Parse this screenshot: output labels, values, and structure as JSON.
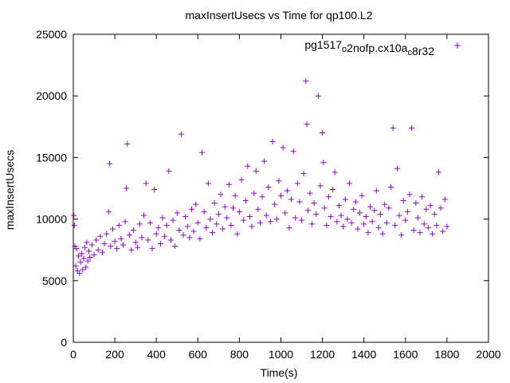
{
  "chart_data": {
    "type": "scatter",
    "title": "maxInsertUsecs vs Time for qp100.L2",
    "xlabel": "Time(s)",
    "ylabel": "maxInsertUsecs",
    "xlim": [
      0,
      2000
    ],
    "ylim": [
      0,
      25000
    ],
    "x_ticks": [
      0,
      200,
      400,
      600,
      800,
      1000,
      1200,
      1400,
      1600,
      1800,
      2000
    ],
    "y_ticks": [
      0,
      5000,
      10000,
      15000,
      20000,
      25000
    ],
    "grid": false,
    "legend_position": "top-right",
    "series": [
      {
        "name": "pg1517_o2nofp.cx10a_c8r32",
        "name_parts": [
          {
            "text": "pg1517",
            "sub": false
          },
          {
            "text": "o",
            "sub": true
          },
          {
            "text": "2nofp.cx10a",
            "sub": false
          },
          {
            "text": "c",
            "sub": true
          },
          {
            "text": "8r32",
            "sub": false
          }
        ],
        "color": "#9400d3",
        "marker": "plus",
        "points": [
          [
            2,
            10300
          ],
          [
            5,
            9500
          ],
          [
            8,
            7800
          ],
          [
            12,
            6200
          ],
          [
            15,
            7600
          ],
          [
            20,
            5800
          ],
          [
            25,
            7000
          ],
          [
            30,
            5600
          ],
          [
            35,
            6500
          ],
          [
            40,
            7200
          ],
          [
            45,
            5900
          ],
          [
            50,
            6800
          ],
          [
            55,
            7700
          ],
          [
            60,
            6100
          ],
          [
            65,
            8100
          ],
          [
            70,
            6600
          ],
          [
            75,
            7400
          ],
          [
            80,
            6900
          ],
          [
            90,
            7900
          ],
          [
            100,
            7100
          ],
          [
            110,
            8300
          ],
          [
            120,
            7500
          ],
          [
            130,
            8600
          ],
          [
            140,
            7300
          ],
          [
            150,
            8000
          ],
          [
            160,
            8800
          ],
          [
            170,
            10600
          ],
          [
            175,
            14500
          ],
          [
            180,
            7800
          ],
          [
            190,
            9200
          ],
          [
            200,
            8200
          ],
          [
            210,
            7600
          ],
          [
            220,
            9500
          ],
          [
            230,
            8400
          ],
          [
            240,
            7900
          ],
          [
            250,
            9800
          ],
          [
            255,
            12500
          ],
          [
            260,
            16100
          ],
          [
            270,
            8700
          ],
          [
            280,
            7500
          ],
          [
            290,
            9100
          ],
          [
            300,
            8100
          ],
          [
            310,
            7700
          ],
          [
            320,
            9600
          ],
          [
            330,
            8500
          ],
          [
            340,
            10300
          ],
          [
            350,
            12900
          ],
          [
            360,
            8300
          ],
          [
            370,
            9700
          ],
          [
            380,
            7600
          ],
          [
            390,
            12400
          ],
          [
            400,
            8800
          ],
          [
            410,
            9300
          ],
          [
            420,
            8000
          ],
          [
            430,
            10100
          ],
          [
            440,
            8600
          ],
          [
            450,
            9500
          ],
          [
            460,
            13900
          ],
          [
            470,
            8300
          ],
          [
            480,
            9900
          ],
          [
            490,
            7800
          ],
          [
            500,
            10500
          ],
          [
            510,
            9100
          ],
          [
            520,
            16900
          ],
          [
            530,
            8700
          ],
          [
            540,
            10200
          ],
          [
            550,
            9400
          ],
          [
            560,
            8500
          ],
          [
            570,
            10800
          ],
          [
            580,
            9000
          ],
          [
            590,
            11200
          ],
          [
            600,
            9700
          ],
          [
            610,
            8400
          ],
          [
            620,
            15400
          ],
          [
            630,
            10600
          ],
          [
            640,
            9300
          ],
          [
            650,
            12900
          ],
          [
            660,
            10000
          ],
          [
            670,
            8900
          ],
          [
            680,
            11300
          ],
          [
            690,
            9600
          ],
          [
            700,
            10400
          ],
          [
            710,
            12000
          ],
          [
            720,
            9200
          ],
          [
            730,
            11000
          ],
          [
            740,
            10100
          ],
          [
            750,
            12800
          ],
          [
            760,
            9500
          ],
          [
            770,
            10900
          ],
          [
            780,
            11900
          ],
          [
            790,
            8800
          ],
          [
            800,
            10600
          ],
          [
            810,
            13200
          ],
          [
            820,
            9900
          ],
          [
            830,
            11500
          ],
          [
            840,
            14300
          ],
          [
            850,
            10200
          ],
          [
            860,
            9400
          ],
          [
            870,
            12100
          ],
          [
            880,
            13900
          ],
          [
            890,
            10800
          ],
          [
            900,
            9700
          ],
          [
            910,
            11800
          ],
          [
            920,
            14700
          ],
          [
            930,
            10300
          ],
          [
            940,
            12600
          ],
          [
            950,
            9800
          ],
          [
            960,
            16300
          ],
          [
            970,
            11200
          ],
          [
            980,
            10000
          ],
          [
            990,
            13100
          ],
          [
            1000,
            11900
          ],
          [
            1010,
            15800
          ],
          [
            1020,
            10500
          ],
          [
            1030,
            12300
          ],
          [
            1040,
            9300
          ],
          [
            1050,
            11600
          ],
          [
            1060,
            15500
          ],
          [
            1070,
            10100
          ],
          [
            1080,
            12900
          ],
          [
            1090,
            11400
          ],
          [
            1100,
            9900
          ],
          [
            1110,
            13700
          ],
          [
            1120,
            21200
          ],
          [
            1125,
            17700
          ],
          [
            1130,
            10700
          ],
          [
            1140,
            12100
          ],
          [
            1150,
            9600
          ],
          [
            1160,
            11300
          ],
          [
            1170,
            10400
          ],
          [
            1180,
            20000
          ],
          [
            1190,
            12700
          ],
          [
            1200,
            17000
          ],
          [
            1205,
            14600
          ],
          [
            1210,
            10900
          ],
          [
            1220,
            9500
          ],
          [
            1230,
            11800
          ],
          [
            1240,
            10200
          ],
          [
            1250,
            12400
          ],
          [
            1260,
            13800
          ],
          [
            1270,
            9800
          ],
          [
            1280,
            11100
          ],
          [
            1290,
            10300
          ],
          [
            1300,
            9400
          ],
          [
            1310,
            11600
          ],
          [
            1320,
            10000
          ],
          [
            1330,
            12900
          ],
          [
            1340,
            9700
          ],
          [
            1350,
            10800
          ],
          [
            1360,
            11400
          ],
          [
            1370,
            9200
          ],
          [
            1380,
            10500
          ],
          [
            1390,
            11900
          ],
          [
            1400,
            9600
          ],
          [
            1410,
            10200
          ],
          [
            1420,
            8900
          ],
          [
            1430,
            11000
          ],
          [
            1440,
            9800
          ],
          [
            1450,
            10700
          ],
          [
            1460,
            12300
          ],
          [
            1470,
            9300
          ],
          [
            1480,
            10400
          ],
          [
            1490,
            8800
          ],
          [
            1500,
            11200
          ],
          [
            1510,
            9700
          ],
          [
            1520,
            10900
          ],
          [
            1530,
            12600
          ],
          [
            1540,
            17400
          ],
          [
            1550,
            9500
          ],
          [
            1560,
            14100
          ],
          [
            1570,
            10300
          ],
          [
            1580,
            8700
          ],
          [
            1590,
            11500
          ],
          [
            1600,
            9900
          ],
          [
            1610,
            10600
          ],
          [
            1620,
            12000
          ],
          [
            1630,
            17400
          ],
          [
            1640,
            9100
          ],
          [
            1650,
            11300
          ],
          [
            1660,
            10100
          ],
          [
            1670,
            8900
          ],
          [
            1680,
            11800
          ],
          [
            1690,
            9600
          ],
          [
            1700,
            10800
          ],
          [
            1710,
            9300
          ],
          [
            1720,
            11100
          ],
          [
            1730,
            8800
          ],
          [
            1740,
            10400
          ],
          [
            1750,
            9500
          ],
          [
            1760,
            13800
          ],
          [
            1770,
            10900
          ],
          [
            1780,
            9000
          ],
          [
            1790,
            11600
          ],
          [
            1800,
            9400
          ]
        ]
      }
    ]
  }
}
